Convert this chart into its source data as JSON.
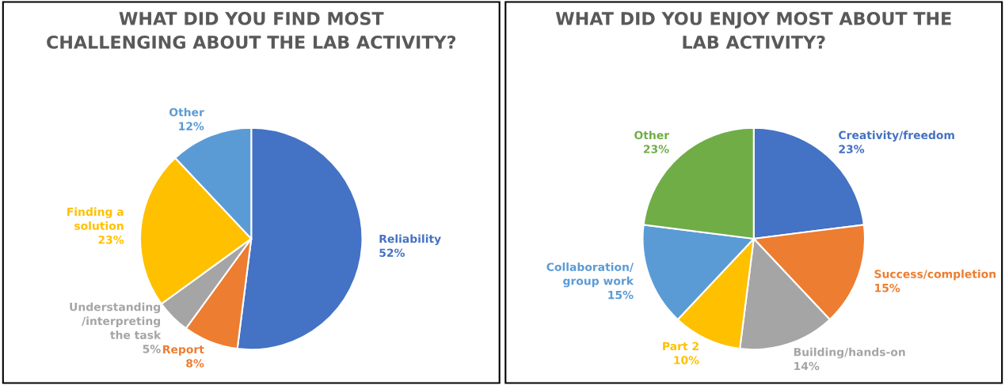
{
  "chart_data": [
    {
      "type": "pie",
      "title": "WHAT DID YOU FIND MOST\nCHALLENGING ABOUT THE LAB ACTIVITY?",
      "categories": [
        "Reliability",
        "Report",
        "Understanding\n/interpreting\nthe task",
        "Finding a\nsolution",
        "Other"
      ],
      "values": [
        52,
        8,
        5,
        23,
        12
      ],
      "value_labels": [
        "52%",
        "8%",
        "5%",
        "23%",
        "12%"
      ],
      "colors": [
        "#4472c4",
        "#ed7d31",
        "#a5a5a5",
        "#ffc000",
        "#5b9bd5"
      ]
    },
    {
      "type": "pie",
      "title": "WHAT DID YOU ENJOY MOST ABOUT THE\nLAB ACTIVITY?",
      "categories": [
        "Creativity/freedom",
        "Success/completion",
        "Building/hands-on",
        "Part 2",
        "Collaboration/\ngroup work",
        "Other"
      ],
      "values": [
        23,
        15,
        14,
        10,
        15,
        23
      ],
      "value_labels": [
        "23%",
        "15%",
        "14%",
        "10%",
        "15%",
        "23%"
      ],
      "colors": [
        "#4472c4",
        "#ed7d31",
        "#a5a5a5",
        "#ffc000",
        "#5b9bd5",
        "#70ad47"
      ]
    }
  ]
}
